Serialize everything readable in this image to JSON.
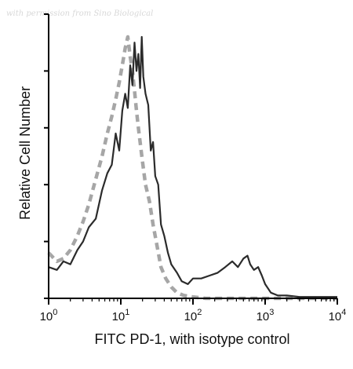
{
  "watermark": "with permission from Sino Biological",
  "colors": {
    "sample": "#2b2b2b",
    "isotype": "#a6a6a6",
    "axis": "#000000"
  },
  "chart_data": {
    "type": "line",
    "title": "",
    "xlabel": "FITC PD-1, with isotype control",
    "ylabel": "Relative Cell Number",
    "x_scale": "log",
    "xlim": [
      1,
      10000
    ],
    "ylim": [
      0,
      100
    ],
    "grid": false,
    "x_ticks": [
      {
        "base": "10",
        "exp": "0"
      },
      {
        "base": "10",
        "exp": "1"
      },
      {
        "base": "10",
        "exp": "2"
      },
      {
        "base": "10",
        "exp": "3"
      },
      {
        "base": "10",
        "exp": "4"
      }
    ],
    "y_ticks": [
      0,
      20,
      40,
      60,
      80,
      100
    ],
    "series": [
      {
        "key": "sample",
        "style": "solid",
        "x": [
          1.0,
          1.3,
          1.6,
          2.0,
          2.5,
          3.0,
          3.6,
          4.5,
          5.5,
          6.5,
          7.5,
          8.5,
          9.5,
          10.5,
          11.5,
          12.5,
          13.5,
          14.5,
          15.5,
          16.5,
          17.5,
          18.5,
          19.5,
          20.5,
          22,
          24,
          26,
          28,
          30,
          33,
          36,
          40,
          45,
          50,
          60,
          70,
          85,
          100,
          130,
          170,
          220,
          280,
          350,
          420,
          500,
          570,
          620,
          700,
          800,
          900,
          1000,
          1200,
          1500,
          2000,
          3000,
          5000,
          10000
        ],
        "y": [
          11,
          10,
          13,
          12,
          17,
          20,
          25,
          28,
          38,
          44,
          47,
          58,
          52,
          66,
          72,
          67,
          82,
          75,
          90,
          80,
          86,
          74,
          92,
          78,
          72,
          68,
          52,
          55,
          43,
          40,
          26,
          22,
          16,
          12,
          9,
          6,
          5,
          7,
          7,
          8,
          9,
          11,
          13,
          11,
          14,
          15,
          12,
          10,
          11,
          8,
          5,
          2,
          1,
          1,
          0.5,
          0.5,
          0.5
        ]
      },
      {
        "key": "isotype",
        "style": "dashed",
        "x": [
          1.0,
          1.3,
          1.6,
          2.0,
          2.5,
          3.0,
          3.6,
          4.5,
          5.5,
          6.5,
          7.5,
          8.5,
          9.5,
          10.5,
          11.5,
          12.5,
          13.5,
          14.5,
          15.5,
          16.5,
          17.5,
          18.5,
          20,
          22,
          25,
          28,
          32,
          36,
          42,
          50,
          60,
          75,
          100,
          150,
          300,
          1000,
          10000
        ],
        "y": [
          16,
          13,
          14,
          17,
          22,
          27,
          33,
          42,
          50,
          58,
          64,
          70,
          76,
          82,
          88,
          92,
          85,
          80,
          73,
          66,
          60,
          55,
          48,
          40,
          34,
          26,
          18,
          11,
          7,
          4,
          2,
          1,
          0.5,
          0,
          0,
          0,
          0
        ]
      }
    ]
  }
}
